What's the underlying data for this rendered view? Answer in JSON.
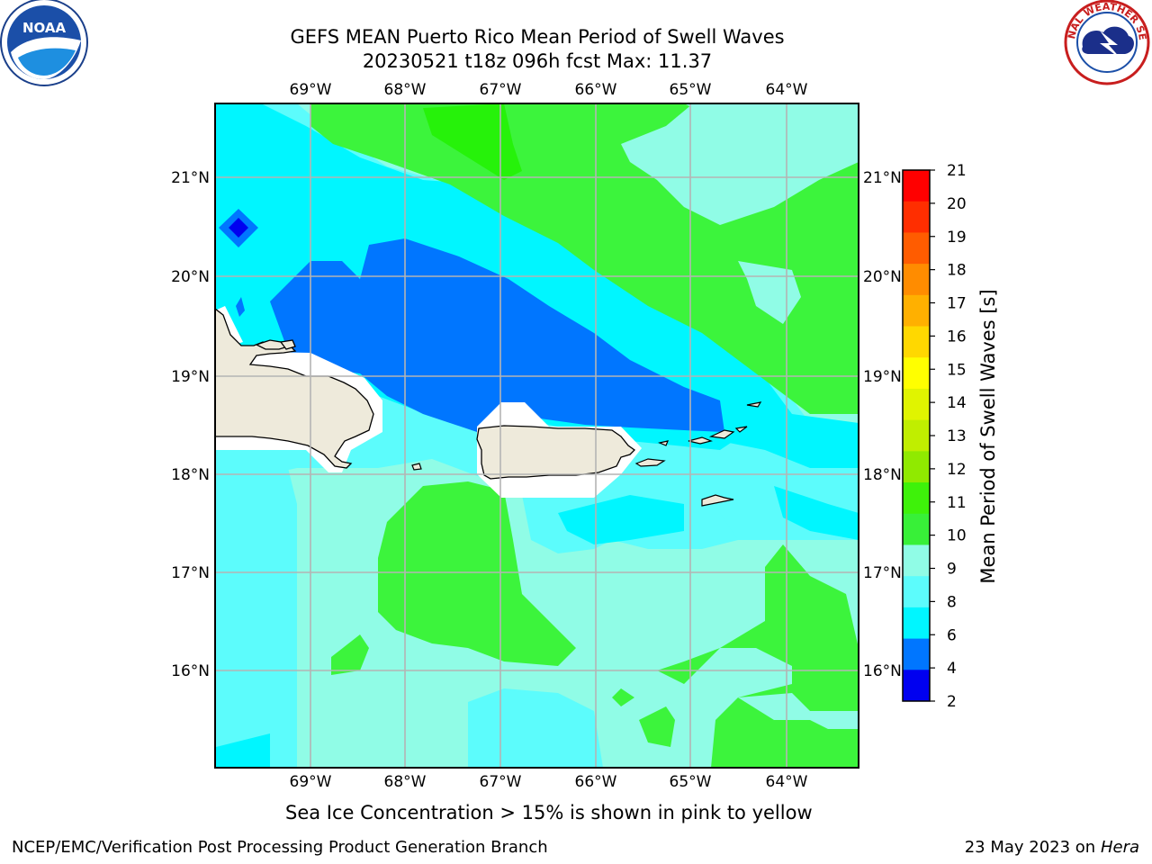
{
  "header": {
    "title_line1": "GEFS MEAN Puerto Rico Mean Period of Swell Waves",
    "title_line2": "20230521 t18z 096h fcst   Max: 11.37"
  },
  "logos": {
    "left": "NOAA",
    "right": "NATIONAL WEATHER SERVICE"
  },
  "map": {
    "lon_labels": [
      "69°W",
      "68°W",
      "67°W",
      "66°W",
      "65°W",
      "64°W"
    ],
    "lat_labels": [
      "21°N",
      "20°N",
      "19°N",
      "18°N",
      "17°N",
      "16°N"
    ],
    "colors": {
      "land": "#eeeadb",
      "ocean_light_cyan": "#5cfcfc",
      "ocean_cyan": "#00f6ff",
      "ocean_blue": "#0076ff",
      "ocean_deep_blue": "#0000f0",
      "ocean_aqua": "#90fce6",
      "swell_green": "#3cf43c",
      "swell_bright_green": "#26f20a",
      "grid": "#b4b4b4"
    }
  },
  "colorbar": {
    "label": "Mean Period of Swell Waves [s]",
    "ticks": [
      "21",
      "20",
      "19",
      "18",
      "17",
      "16",
      "15",
      "14",
      "13",
      "12",
      "11",
      "10",
      "9",
      "8",
      "6",
      "4",
      "2"
    ],
    "colors": [
      "#ff0000",
      "#ff2e00",
      "#ff5c00",
      "#ff8c00",
      "#ffb000",
      "#ffd800",
      "#ffff00",
      "#e0f400",
      "#c0ee00",
      "#90ea00",
      "#3ef20a",
      "#38f038",
      "#90fce6",
      "#5cfcfc",
      "#00f6ff",
      "#0076ff",
      "#0000f0"
    ]
  },
  "subtitle": "Sea Ice Concentration > 15% is shown in pink to yellow",
  "footer": {
    "left": "NCEP/EMC/Verification Post Processing Product Generation Branch",
    "right_date": "23 May 2023 on",
    "right_host": "Hera"
  }
}
